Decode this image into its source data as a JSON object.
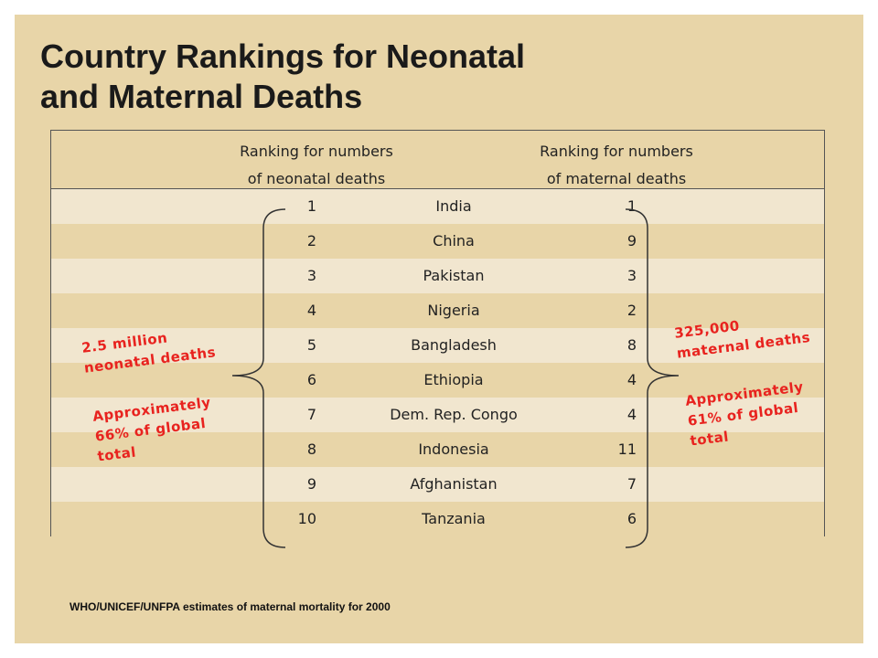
{
  "title": {
    "line1": "Country Rankings for Neonatal",
    "line2": "and Maternal Deaths"
  },
  "header": {
    "neonatal": {
      "line1": "Ranking for numbers",
      "line2": "of neonatal deaths"
    },
    "maternal": {
      "line1": "Ranking for numbers",
      "line2": "of maternal deaths"
    }
  },
  "rows": [
    {
      "neonatal_rank": "1",
      "country": "India",
      "maternal_rank": "1"
    },
    {
      "neonatal_rank": "2",
      "country": "China",
      "maternal_rank": "9"
    },
    {
      "neonatal_rank": "3",
      "country": "Pakistan",
      "maternal_rank": "3"
    },
    {
      "neonatal_rank": "4",
      "country": "Nigeria",
      "maternal_rank": "2"
    },
    {
      "neonatal_rank": "5",
      "country": "Bangladesh",
      "maternal_rank": "8"
    },
    {
      "neonatal_rank": "6",
      "country": "Ethiopia",
      "maternal_rank": "4"
    },
    {
      "neonatal_rank": "7",
      "country": "Dem. Rep. Congo",
      "maternal_rank": "4"
    },
    {
      "neonatal_rank": "8",
      "country": "Indonesia",
      "maternal_rank": "11"
    },
    {
      "neonatal_rank": "9",
      "country": "Afghanistan",
      "maternal_rank": "7"
    },
    {
      "neonatal_rank": "10",
      "country": "Tanzania",
      "maternal_rank": "6"
    }
  ],
  "annotations": {
    "neonatal_total": {
      "line1": "2.5 million",
      "line2": "neonatal deaths"
    },
    "neonatal_share": {
      "line1": "Approximately",
      "line2": "66% of global",
      "line3": "total"
    },
    "maternal_total": {
      "line1": "325,000",
      "line2": "maternal deaths"
    },
    "maternal_share": {
      "line1": "Approximately",
      "line2": "61% of global",
      "line3": "total"
    }
  },
  "source": "WHO/UNICEF/UNFPA estimates of maternal mortality for 2000",
  "colors": {
    "background": "#e8d5a8",
    "row_light": "#f1e6cf",
    "annotation": "#e8231f"
  }
}
